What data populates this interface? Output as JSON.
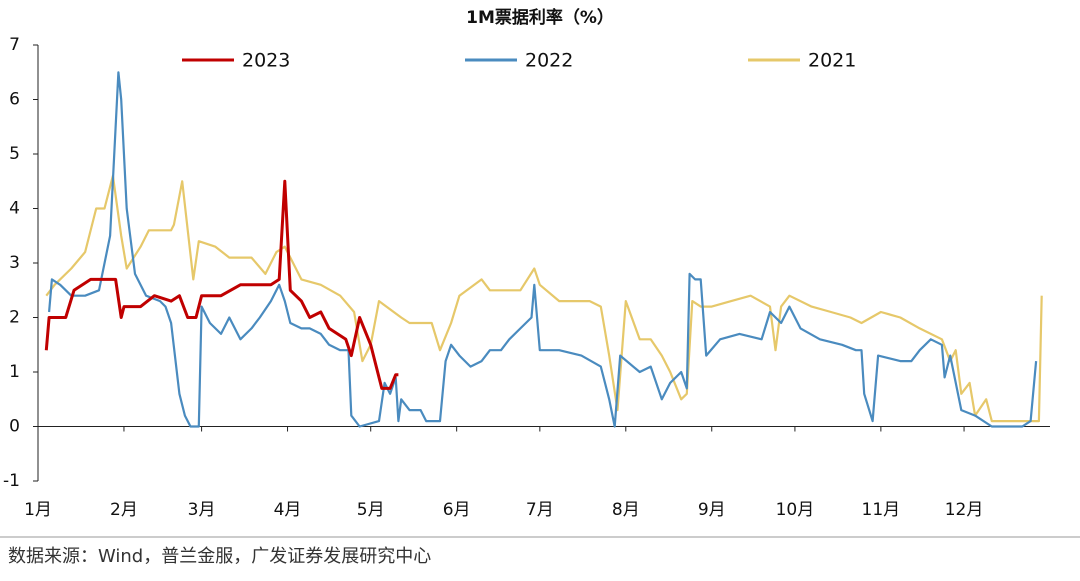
{
  "chart_data": {
    "type": "line",
    "title": "1M票据利率（%）",
    "source": "数据来源：Wind，普兰金服，广发证券发展研究中心",
    "xlim": [
      0,
      365
    ],
    "xticks": [
      {
        "value": 0,
        "label": "1月"
      },
      {
        "value": 31,
        "label": "2月"
      },
      {
        "value": 59,
        "label": "3月"
      },
      {
        "value": 90,
        "label": "4月"
      },
      {
        "value": 120,
        "label": "5月"
      },
      {
        "value": 151,
        "label": "6月"
      },
      {
        "value": 181,
        "label": "7月"
      },
      {
        "value": 212,
        "label": "8月"
      },
      {
        "value": 243,
        "label": "9月"
      },
      {
        "value": 273,
        "label": "10月"
      },
      {
        "value": 304,
        "label": "11月"
      },
      {
        "value": 334,
        "label": "12月"
      }
    ],
    "ylim": [
      -1,
      7
    ],
    "yticks": [
      -1,
      0,
      1,
      2,
      3,
      4,
      5,
      6,
      7
    ],
    "series": [
      {
        "name": "2023",
        "color": "#c00000",
        "x": [
          3,
          4,
          10,
          13,
          19,
          22,
          28,
          30,
          31,
          37,
          42,
          48,
          51,
          54,
          57,
          59,
          66,
          73,
          84,
          87,
          89,
          91,
          95,
          98,
          102,
          105,
          111,
          113,
          116,
          120,
          124,
          127,
          129,
          130
        ],
        "values": [
          1.4,
          2.0,
          2.0,
          2.5,
          2.7,
          2.7,
          2.7,
          2.0,
          2.2,
          2.2,
          2.4,
          2.3,
          2.4,
          2.0,
          2.0,
          2.4,
          2.4,
          2.6,
          2.6,
          2.7,
          4.5,
          2.5,
          2.3,
          2.0,
          2.1,
          1.8,
          1.6,
          1.3,
          2.0,
          1.5,
          0.7,
          0.7,
          0.95,
          0.95
        ]
      },
      {
        "name": "2022",
        "color": "#4a8bbf",
        "x": [
          4,
          5,
          8,
          12,
          17,
          22,
          26,
          29,
          30,
          32,
          35,
          39,
          44,
          46,
          48,
          51,
          53,
          55,
          58,
          59,
          62,
          66,
          69,
          73,
          77,
          80,
          84,
          87,
          89,
          91,
          95,
          98,
          102,
          105,
          109,
          112,
          113,
          116,
          123,
          125,
          127,
          129,
          130,
          131,
          134,
          138,
          140,
          145,
          147,
          149,
          152,
          156,
          160,
          163,
          167,
          170,
          174,
          178,
          179,
          181,
          188,
          196,
          203,
          206,
          208,
          210,
          217,
          221,
          225,
          228,
          232,
          234,
          235,
          237,
          239,
          241,
          246,
          253,
          261,
          264,
          268,
          271,
          275,
          282,
          290,
          295,
          297,
          298,
          301,
          303,
          311,
          315,
          318,
          322,
          326,
          327,
          329,
          333,
          338,
          344,
          355,
          358,
          360
        ],
        "values": [
          2.1,
          2.7,
          2.6,
          2.4,
          2.4,
          2.5,
          3.5,
          6.5,
          6.0,
          4.0,
          2.8,
          2.4,
          2.3,
          2.2,
          1.9,
          0.6,
          0.2,
          0,
          0,
          2.2,
          1.9,
          1.7,
          2.0,
          1.6,
          1.8,
          2.0,
          2.3,
          2.6,
          2.3,
          1.9,
          1.8,
          1.8,
          1.7,
          1.5,
          1.4,
          1.4,
          0.2,
          0,
          0.1,
          0.8,
          0.6,
          0.9,
          0.1,
          0.5,
          0.3,
          0.3,
          0.1,
          0.1,
          1.2,
          1.5,
          1.3,
          1.1,
          1.2,
          1.4,
          1.4,
          1.6,
          1.8,
          2.0,
          2.6,
          1.4,
          1.4,
          1.3,
          1.1,
          0.5,
          0,
          1.3,
          1.0,
          1.1,
          0.5,
          0.8,
          1.0,
          0.7,
          2.8,
          2.7,
          2.7,
          1.3,
          1.6,
          1.7,
          1.6,
          2.1,
          1.9,
          2.2,
          1.8,
          1.6,
          1.5,
          1.4,
          1.4,
          0.6,
          0.1,
          1.3,
          1.2,
          1.2,
          1.4,
          1.6,
          1.5,
          0.9,
          1.3,
          0.3,
          0.2,
          0,
          0,
          0.1,
          1.2
        ]
      },
      {
        "name": "2021",
        "color": "#e6c86a",
        "x": [
          3,
          6,
          12,
          17,
          21,
          24,
          27,
          30,
          32,
          37,
          40,
          48,
          49,
          52,
          56,
          58,
          64,
          69,
          77,
          82,
          86,
          89,
          95,
          102,
          109,
          114,
          117,
          120,
          123,
          131,
          134,
          142,
          145,
          149,
          152,
          160,
          163,
          174,
          179,
          181,
          188,
          199,
          203,
          206,
          209,
          212,
          217,
          221,
          225,
          228,
          232,
          234,
          236,
          239,
          243,
          250,
          257,
          264,
          266,
          268,
          271,
          279,
          286,
          293,
          297,
          304,
          311,
          318,
          326,
          329,
          331,
          333,
          336,
          338,
          342,
          344,
          347,
          355,
          358,
          361,
          362
        ],
        "values": [
          2.4,
          2.6,
          2.9,
          3.2,
          4.0,
          4.0,
          4.6,
          3.5,
          2.9,
          3.3,
          3.6,
          3.6,
          3.7,
          4.5,
          2.7,
          3.4,
          3.3,
          3.1,
          3.1,
          2.8,
          3.2,
          3.3,
          2.7,
          2.6,
          2.4,
          2.1,
          1.2,
          1.5,
          2.3,
          2.0,
          1.9,
          1.9,
          1.4,
          1.9,
          2.4,
          2.7,
          2.5,
          2.5,
          2.9,
          2.6,
          2.3,
          2.3,
          2.2,
          1.3,
          0.3,
          2.3,
          1.6,
          1.6,
          1.3,
          1.0,
          0.5,
          0.6,
          2.3,
          2.2,
          2.2,
          2.3,
          2.4,
          2.2,
          1.4,
          2.2,
          2.4,
          2.2,
          2.1,
          2.0,
          1.9,
          2.1,
          2.0,
          1.8,
          1.6,
          1.2,
          1.4,
          0.6,
          0.8,
          0.2,
          0.5,
          0.1,
          0.1,
          0.1,
          0.1,
          0.1,
          2.4
        ]
      }
    ]
  }
}
